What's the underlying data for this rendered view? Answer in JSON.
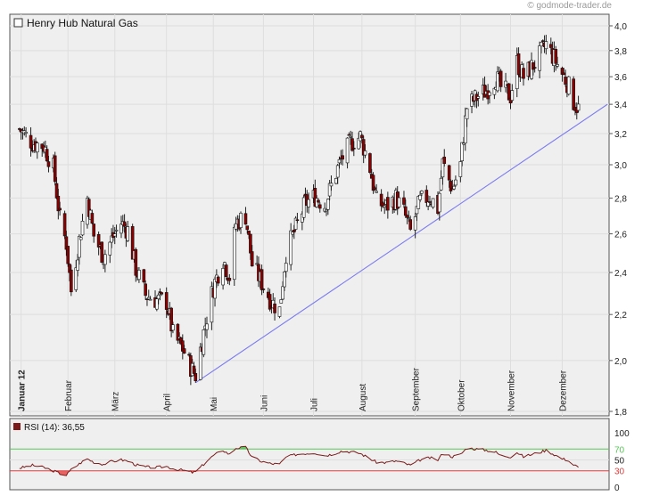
{
  "credit": "© godmode-trader.de",
  "chart_data": [
    {
      "type": "candlestick",
      "title": "Henry Hub Natural Gas",
      "y_ticks": [
        "4,0",
        "3,8",
        "3,6",
        "3,4",
        "3,2",
        "3,0",
        "2,8",
        "2,6",
        "2,4",
        "2,2",
        "2,0",
        "1,8"
      ],
      "y_tick_values": [
        4.0,
        3.8,
        3.6,
        3.4,
        3.2,
        3.0,
        2.8,
        2.6,
        2.4,
        2.2,
        2.0,
        1.8
      ],
      "ylim": [
        1.8,
        4.0
      ],
      "scale": "log",
      "x_months": [
        {
          "label": "Januar 12",
          "bold": true,
          "date": "2012-01-03"
        },
        {
          "label": "Februar",
          "bold": false,
          "date": "2012-02-01"
        },
        {
          "label": "März",
          "bold": false,
          "date": "2012-03-01"
        },
        {
          "label": "April",
          "bold": false,
          "date": "2012-04-02"
        },
        {
          "label": "Mai",
          "bold": false,
          "date": "2012-05-01"
        },
        {
          "label": "Juni",
          "bold": false,
          "date": "2012-06-01"
        },
        {
          "label": "Juli",
          "bold": false,
          "date": "2012-07-02"
        },
        {
          "label": "August",
          "bold": false,
          "date": "2012-08-01"
        },
        {
          "label": "September",
          "bold": false,
          "date": "2012-09-03"
        },
        {
          "label": "Oktober",
          "bold": false,
          "date": "2012-10-01"
        },
        {
          "label": "November",
          "bold": false,
          "date": "2012-11-01"
        },
        {
          "label": "Dezember",
          "bold": false,
          "date": "2012-12-03"
        }
      ],
      "close_path": [
        [
          "2012-01-02",
          3.23
        ],
        [
          "2012-01-10",
          3.14
        ],
        [
          "2012-01-17",
          3.12
        ],
        [
          "2012-01-23",
          2.98
        ],
        [
          "2012-01-27",
          2.68
        ],
        [
          "2012-01-31",
          2.55
        ],
        [
          "2012-02-03",
          2.31
        ],
        [
          "2012-02-09",
          2.62
        ],
        [
          "2012-02-13",
          2.8
        ],
        [
          "2012-02-17",
          2.59
        ],
        [
          "2012-02-23",
          2.48
        ],
        [
          "2012-02-28",
          2.57
        ],
        [
          "2012-03-05",
          2.66
        ],
        [
          "2012-03-09",
          2.62
        ],
        [
          "2012-03-14",
          2.42
        ],
        [
          "2012-03-20",
          2.29
        ],
        [
          "2012-03-26",
          2.27
        ],
        [
          "2012-04-02",
          2.26
        ],
        [
          "2012-04-06",
          2.11
        ],
        [
          "2012-04-12",
          2.05
        ],
        [
          "2012-04-18",
          1.96
        ],
        [
          "2012-04-20",
          1.94
        ],
        [
          "2012-04-25",
          2.12
        ],
        [
          "2012-05-01",
          2.33
        ],
        [
          "2012-05-07",
          2.47
        ],
        [
          "2012-05-11",
          2.38
        ],
        [
          "2012-05-15",
          2.66
        ],
        [
          "2012-05-21",
          2.7
        ],
        [
          "2012-05-25",
          2.44
        ],
        [
          "2012-05-31",
          2.35
        ],
        [
          "2012-06-06",
          2.26
        ],
        [
          "2012-06-11",
          2.22
        ],
        [
          "2012-06-15",
          2.5
        ],
        [
          "2012-06-21",
          2.63
        ],
        [
          "2012-06-27",
          2.77
        ],
        [
          "2012-07-03",
          2.81
        ],
        [
          "2012-07-09",
          2.76
        ],
        [
          "2012-07-13",
          2.87
        ],
        [
          "2012-07-19",
          3.03
        ],
        [
          "2012-07-25",
          3.14
        ],
        [
          "2012-07-31",
          3.18
        ],
        [
          "2012-08-06",
          2.98
        ],
        [
          "2012-08-10",
          2.78
        ],
        [
          "2012-08-16",
          2.75
        ],
        [
          "2012-08-22",
          2.8
        ],
        [
          "2012-08-27",
          2.72
        ],
        [
          "2012-08-31",
          2.61
        ],
        [
          "2012-09-06",
          2.78
        ],
        [
          "2012-09-12",
          2.81
        ],
        [
          "2012-09-17",
          2.74
        ],
        [
          "2012-09-20",
          3.01
        ],
        [
          "2012-09-26",
          2.85
        ],
        [
          "2012-10-01",
          3.0
        ],
        [
          "2012-10-05",
          3.38
        ],
        [
          "2012-10-11",
          3.45
        ],
        [
          "2012-10-17",
          3.5
        ],
        [
          "2012-10-23",
          3.6
        ],
        [
          "2012-10-26",
          3.52
        ],
        [
          "2012-11-01",
          3.46
        ],
        [
          "2012-11-05",
          3.71
        ],
        [
          "2012-11-09",
          3.6
        ],
        [
          "2012-11-14",
          3.67
        ],
        [
          "2012-11-19",
          3.76
        ],
        [
          "2012-11-23",
          3.85
        ],
        [
          "2012-11-28",
          3.74
        ],
        [
          "2012-12-03",
          3.62
        ],
        [
          "2012-12-06",
          3.56
        ],
        [
          "2012-12-10",
          3.42
        ],
        [
          "2012-12-13",
          3.37
        ]
      ],
      "trendline": {
        "from": [
          "2012-04-20",
          1.91
        ],
        "to": [
          "2012-12-31",
          3.4
        ]
      },
      "colors": {
        "bull": "#ffffff",
        "bear": "#8b0000",
        "wick": "#222222",
        "trend": "#7b7bf0",
        "panel": "#efefef",
        "grid": "#dedede"
      }
    },
    {
      "type": "line",
      "legend": "RSI (14): 36,55",
      "y_ticks": [
        "100",
        "70",
        "50",
        "30",
        "0"
      ],
      "y_tick_values": [
        100,
        70,
        50,
        30,
        0
      ],
      "ylim": [
        0,
        100
      ],
      "levels": [
        {
          "value": 70,
          "color": "#55c855"
        },
        {
          "value": 30,
          "color": "#d84040"
        }
      ],
      "last_value": 36.55,
      "rsi_path": [
        [
          "2012-01-02",
          35
        ],
        [
          "2012-01-10",
          40
        ],
        [
          "2012-01-17",
          36
        ],
        [
          "2012-01-23",
          30
        ],
        [
          "2012-01-27",
          25
        ],
        [
          "2012-01-31",
          22
        ],
        [
          "2012-02-03",
          32
        ],
        [
          "2012-02-09",
          45
        ],
        [
          "2012-02-13",
          52
        ],
        [
          "2012-02-17",
          46
        ],
        [
          "2012-02-23",
          42
        ],
        [
          "2012-02-28",
          47
        ],
        [
          "2012-03-05",
          50
        ],
        [
          "2012-03-09",
          48
        ],
        [
          "2012-03-14",
          41
        ],
        [
          "2012-03-20",
          37
        ],
        [
          "2012-03-26",
          36
        ],
        [
          "2012-04-02",
          38
        ],
        [
          "2012-04-06",
          34
        ],
        [
          "2012-04-12",
          31
        ],
        [
          "2012-04-18",
          27
        ],
        [
          "2012-04-20",
          28
        ],
        [
          "2012-04-25",
          42
        ],
        [
          "2012-05-01",
          58
        ],
        [
          "2012-05-07",
          68
        ],
        [
          "2012-05-11",
          60
        ],
        [
          "2012-05-15",
          72
        ],
        [
          "2012-05-21",
          73
        ],
        [
          "2012-05-25",
          55
        ],
        [
          "2012-05-31",
          47
        ],
        [
          "2012-06-06",
          43
        ],
        [
          "2012-06-11",
          42
        ],
        [
          "2012-06-15",
          55
        ],
        [
          "2012-06-21",
          60
        ],
        [
          "2012-06-27",
          62
        ],
        [
          "2012-07-03",
          63
        ],
        [
          "2012-07-09",
          58
        ],
        [
          "2012-07-13",
          60
        ],
        [
          "2012-07-19",
          66
        ],
        [
          "2012-07-25",
          65
        ],
        [
          "2012-07-31",
          62
        ],
        [
          "2012-08-06",
          52
        ],
        [
          "2012-08-10",
          46
        ],
        [
          "2012-08-16",
          45
        ],
        [
          "2012-08-22",
          48
        ],
        [
          "2012-08-27",
          44
        ],
        [
          "2012-08-31",
          40
        ],
        [
          "2012-09-06",
          50
        ],
        [
          "2012-09-12",
          54
        ],
        [
          "2012-09-17",
          50
        ],
        [
          "2012-09-20",
          62
        ],
        [
          "2012-09-26",
          56
        ],
        [
          "2012-10-01",
          60
        ],
        [
          "2012-10-05",
          72
        ],
        [
          "2012-10-11",
          70
        ],
        [
          "2012-10-17",
          68
        ],
        [
          "2012-10-23",
          64
        ],
        [
          "2012-10-26",
          58
        ],
        [
          "2012-11-01",
          56
        ],
        [
          "2012-11-05",
          64
        ],
        [
          "2012-11-09",
          56
        ],
        [
          "2012-11-14",
          60
        ],
        [
          "2012-11-19",
          64
        ],
        [
          "2012-11-23",
          68
        ],
        [
          "2012-11-28",
          60
        ],
        [
          "2012-12-03",
          52
        ],
        [
          "2012-12-06",
          50
        ],
        [
          "2012-12-10",
          41
        ],
        [
          "2012-12-13",
          36.55
        ]
      ],
      "colors": {
        "line": "#7a1a1a",
        "panel": "#efefef",
        "grid": "#dedede"
      }
    }
  ]
}
